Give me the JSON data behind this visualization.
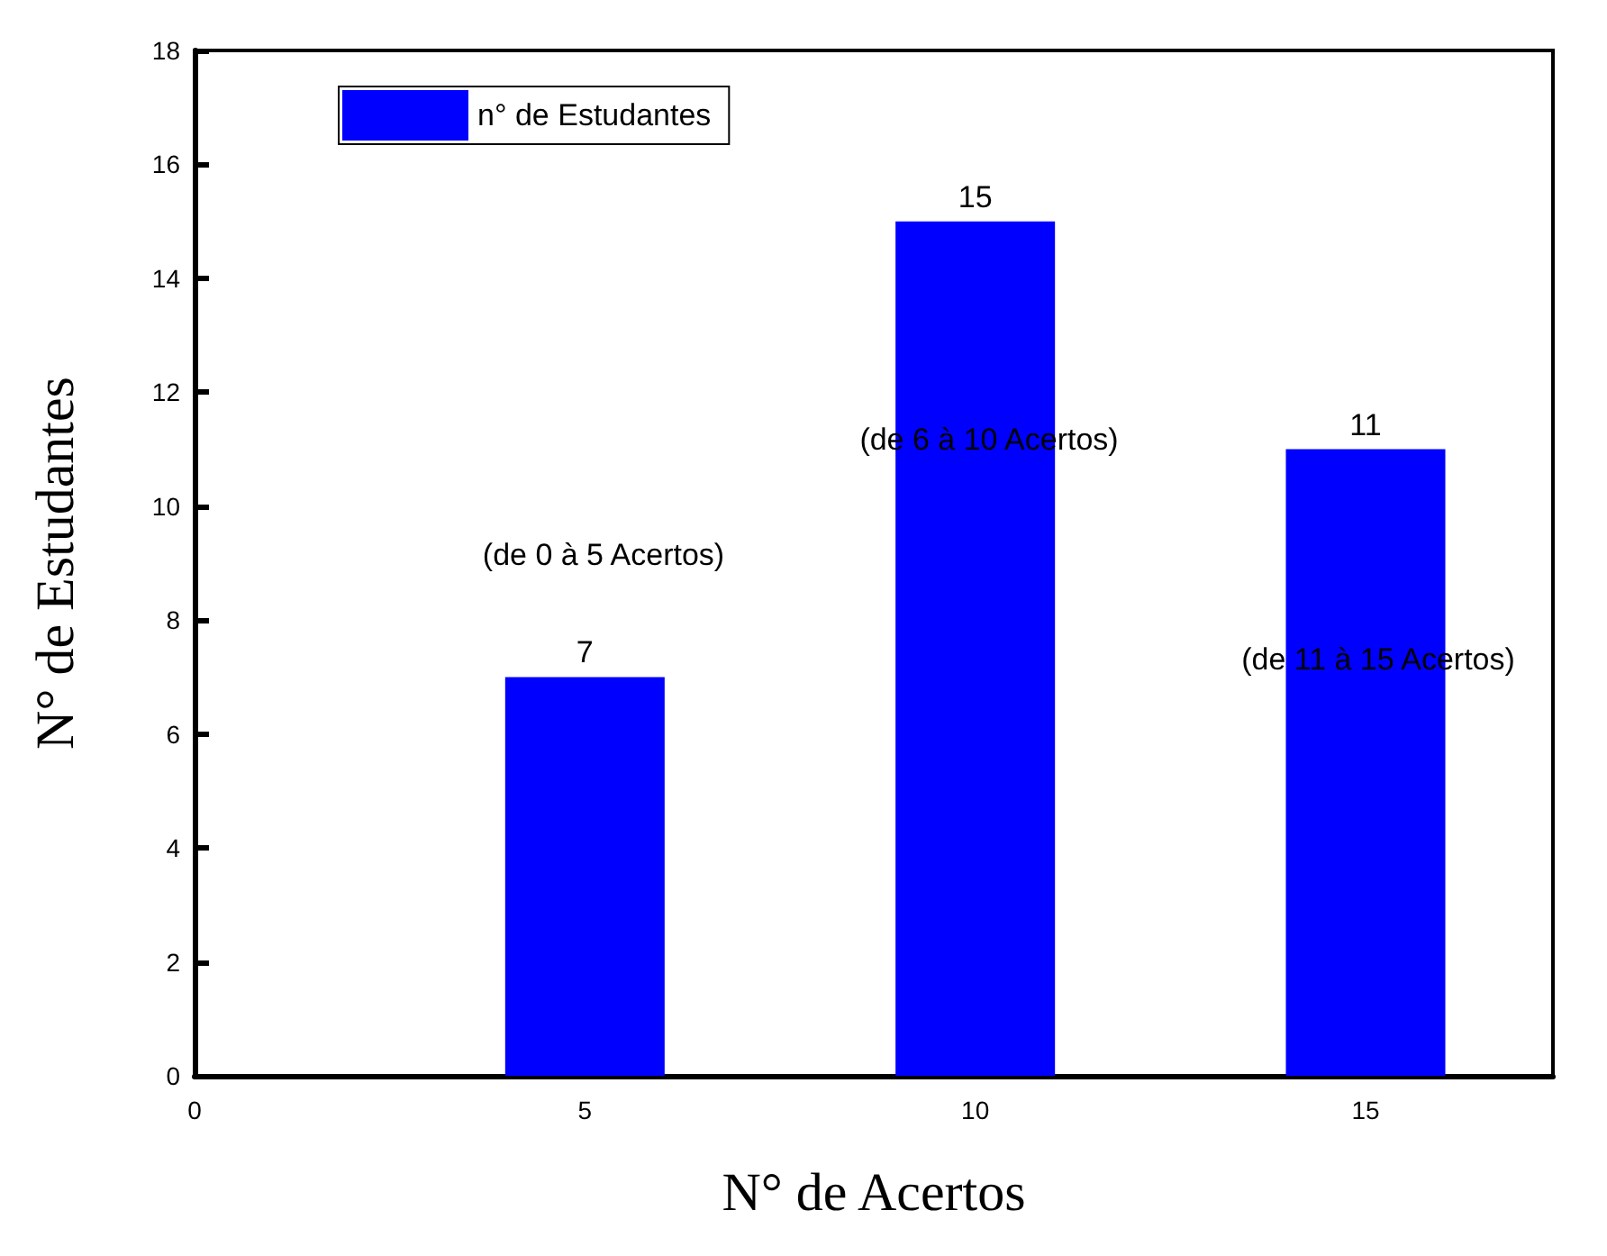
{
  "chart_data": {
    "type": "bar",
    "x": [
      5,
      10,
      15
    ],
    "series": [
      {
        "name": "n° de Estudantes",
        "color": "#0000ff",
        "values": [
          7,
          15,
          11
        ]
      }
    ],
    "xlabel": "N° de Acertos",
    "ylabel": "N° de Estudantes",
    "xlim": [
      0,
      17.4
    ],
    "xticks": [
      0,
      5,
      10,
      15
    ],
    "ylim": [
      0,
      18
    ],
    "yticks": [
      0,
      2,
      4,
      6,
      8,
      10,
      12,
      14,
      16,
      18
    ],
    "data_labels": true,
    "legend": "top left",
    "grid": false,
    "annotations": [
      "(de 0 à 5 Acertos)",
      "(de 6 à 10 Acertos)",
      "(de 11 à 15 Acertos)"
    ]
  }
}
